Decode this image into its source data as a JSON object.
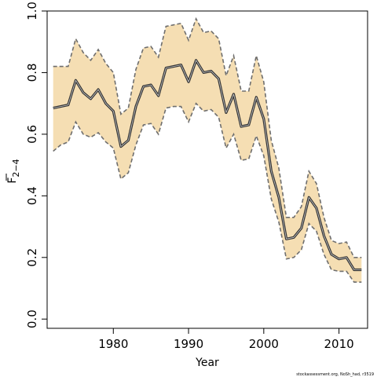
{
  "chart_data": {
    "type": "line",
    "xlabel": "Year",
    "ylabel": "F",
    "ylabel_subscript": "2−4",
    "xlim": [
      1971.2,
      2013.8
    ],
    "ylim": [
      -0.03,
      1.0
    ],
    "x_ticks": [
      1980,
      1990,
      2000,
      2010
    ],
    "y_ticks": [
      0.0,
      0.2,
      0.4,
      0.6,
      0.8,
      1.0
    ],
    "y_tick_labels": [
      "0.0",
      "0.2",
      "0.4",
      "0.6",
      "0.8",
      "1.0"
    ],
    "colors": {
      "band_fill": "#f5deb3",
      "band_edge": "#6e6e6e",
      "line": "#333333"
    },
    "footnote": "stockassessment.org, NoSh_had, r3519",
    "series": [
      {
        "x": [
          1972,
          1973,
          1974,
          1975,
          1976,
          1977,
          1978,
          1979,
          1980,
          1981,
          1982,
          1983,
          1984,
          1985,
          1986,
          1987,
          1988,
          1989,
          1990,
          1991,
          1992,
          1993,
          1994,
          1995,
          1996,
          1997,
          1998,
          1999,
          2000,
          2001,
          2002,
          2003,
          2004,
          2005,
          2006,
          2007,
          2008,
          2009,
          2010,
          2011,
          2012,
          2013
        ],
        "values": [
          0.685,
          0.69,
          0.695,
          0.775,
          0.735,
          0.715,
          0.745,
          0.7,
          0.675,
          0.56,
          0.58,
          0.69,
          0.755,
          0.76,
          0.725,
          0.815,
          0.82,
          0.825,
          0.77,
          0.84,
          0.8,
          0.805,
          0.78,
          0.67,
          0.73,
          0.625,
          0.63,
          0.72,
          0.65,
          0.48,
          0.395,
          0.26,
          0.265,
          0.295,
          0.395,
          0.36,
          0.27,
          0.21,
          0.195,
          0.2,
          0.16,
          0.16
        ],
        "lower": [
          0.545,
          0.565,
          0.575,
          0.64,
          0.6,
          0.59,
          0.605,
          0.575,
          0.555,
          0.455,
          0.475,
          0.565,
          0.63,
          0.635,
          0.6,
          0.685,
          0.69,
          0.69,
          0.64,
          0.7,
          0.675,
          0.68,
          0.655,
          0.555,
          0.6,
          0.515,
          0.52,
          0.595,
          0.53,
          0.39,
          0.315,
          0.195,
          0.2,
          0.225,
          0.31,
          0.285,
          0.21,
          0.16,
          0.155,
          0.155,
          0.12,
          0.12
        ],
        "upper": [
          0.82,
          0.82,
          0.82,
          0.91,
          0.865,
          0.84,
          0.875,
          0.83,
          0.8,
          0.665,
          0.685,
          0.81,
          0.88,
          0.885,
          0.85,
          0.95,
          0.955,
          0.96,
          0.905,
          0.975,
          0.93,
          0.935,
          0.91,
          0.79,
          0.855,
          0.74,
          0.74,
          0.855,
          0.77,
          0.58,
          0.49,
          0.33,
          0.33,
          0.365,
          0.48,
          0.44,
          0.33,
          0.255,
          0.245,
          0.25,
          0.2,
          0.2
        ]
      }
    ]
  }
}
